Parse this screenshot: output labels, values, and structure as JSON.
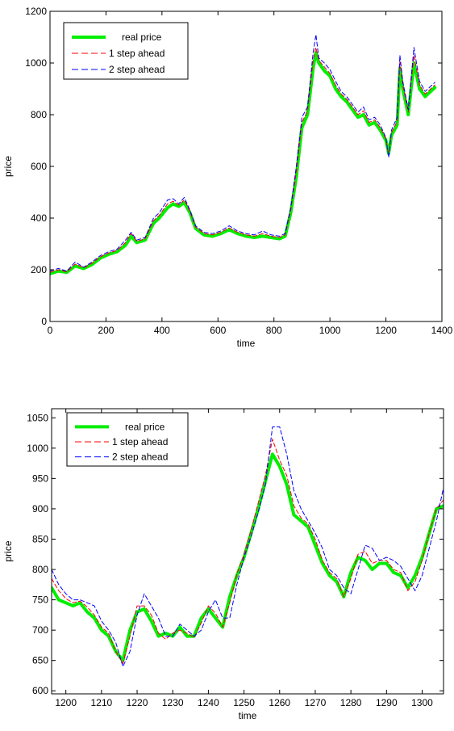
{
  "chart_data": [
    {
      "type": "line",
      "title": "",
      "xlabel": "time",
      "ylabel": "price",
      "xlim": [
        0,
        1400
      ],
      "ylim": [
        0,
        1200
      ],
      "xticks": [
        0,
        200,
        400,
        600,
        800,
        1000,
        1200,
        1400
      ],
      "yticks": [
        0,
        200,
        400,
        600,
        800,
        1000,
        1200
      ],
      "grid": false,
      "legend_position": "top-left",
      "series": [
        {
          "name": "real price",
          "color": "#00ee00",
          "style": "solid-thick",
          "x": [
            0,
            30,
            60,
            90,
            120,
            150,
            180,
            210,
            240,
            270,
            290,
            310,
            340,
            370,
            390,
            420,
            440,
            460,
            480,
            500,
            520,
            550,
            580,
            610,
            640,
            670,
            700,
            730,
            760,
            790,
            820,
            840,
            860,
            880,
            900,
            920,
            940,
            950,
            960,
            980,
            1000,
            1020,
            1040,
            1060,
            1080,
            1100,
            1120,
            1140,
            1160,
            1180,
            1200,
            1210,
            1220,
            1240,
            1250,
            1260,
            1280,
            1300,
            1320,
            1340,
            1360,
            1375
          ],
          "y": [
            185,
            195,
            190,
            215,
            205,
            220,
            245,
            260,
            270,
            295,
            330,
            305,
            315,
            380,
            400,
            440,
            455,
            445,
            460,
            420,
            360,
            335,
            330,
            340,
            355,
            340,
            330,
            325,
            330,
            325,
            320,
            330,
            420,
            560,
            750,
            800,
            980,
            1040,
            1000,
            970,
            950,
            900,
            870,
            850,
            820,
            790,
            800,
            760,
            770,
            740,
            700,
            650,
            720,
            760,
            980,
            900,
            800,
            1000,
            900,
            870,
            890,
            905
          ]
        },
        {
          "name": "1 step ahead",
          "color": "#ff0000",
          "style": "dashed",
          "x": [
            0,
            30,
            60,
            90,
            120,
            150,
            180,
            210,
            240,
            270,
            290,
            310,
            340,
            370,
            390,
            420,
            440,
            460,
            480,
            500,
            520,
            550,
            580,
            610,
            640,
            670,
            700,
            730,
            760,
            790,
            820,
            840,
            860,
            880,
            900,
            920,
            940,
            950,
            960,
            980,
            1000,
            1020,
            1040,
            1060,
            1080,
            1100,
            1120,
            1140,
            1160,
            1180,
            1200,
            1210,
            1220,
            1240,
            1250,
            1260,
            1280,
            1300,
            1320,
            1340,
            1360,
            1375
          ],
          "y": [
            190,
            200,
            192,
            222,
            208,
            225,
            250,
            265,
            275,
            305,
            340,
            310,
            320,
            390,
            410,
            455,
            465,
            450,
            470,
            425,
            365,
            340,
            335,
            345,
            362,
            345,
            335,
            330,
            340,
            330,
            325,
            335,
            430,
            580,
            770,
            815,
            1010,
            1060,
            1010,
            985,
            960,
            915,
            880,
            860,
            830,
            800,
            815,
            770,
            780,
            750,
            705,
            640,
            730,
            775,
            1005,
            915,
            810,
            1030,
            915,
            880,
            900,
            915
          ]
        },
        {
          "name": "2 step ahead",
          "color": "#0000ff",
          "style": "dashed",
          "x": [
            0,
            30,
            60,
            90,
            120,
            150,
            180,
            210,
            240,
            270,
            290,
            310,
            340,
            370,
            390,
            420,
            440,
            460,
            480,
            500,
            520,
            550,
            580,
            610,
            640,
            670,
            700,
            730,
            760,
            790,
            820,
            840,
            860,
            880,
            900,
            920,
            940,
            950,
            960,
            980,
            1000,
            1020,
            1040,
            1060,
            1080,
            1100,
            1120,
            1140,
            1160,
            1180,
            1200,
            1210,
            1220,
            1240,
            1250,
            1260,
            1280,
            1300,
            1320,
            1340,
            1360,
            1375
          ],
          "y": [
            195,
            205,
            195,
            230,
            210,
            230,
            255,
            270,
            280,
            315,
            345,
            315,
            325,
            400,
            420,
            470,
            475,
            455,
            480,
            430,
            370,
            345,
            340,
            350,
            370,
            350,
            340,
            335,
            350,
            335,
            330,
            340,
            440,
            600,
            790,
            830,
            1040,
            1110,
            1020,
            1000,
            975,
            930,
            890,
            870,
            840,
            810,
            830,
            780,
            790,
            760,
            710,
            635,
            740,
            790,
            1030,
            930,
            820,
            1060,
            930,
            890,
            910,
            925
          ]
        }
      ]
    },
    {
      "type": "line",
      "title": "",
      "xlabel": "time",
      "ylabel": "price",
      "xlim": [
        1196,
        1306
      ],
      "ylim": [
        595,
        1065
      ],
      "xticks": [
        1200,
        1210,
        1220,
        1230,
        1240,
        1250,
        1260,
        1270,
        1280,
        1290,
        1300
      ],
      "yticks": [
        600,
        650,
        700,
        750,
        800,
        850,
        900,
        950,
        1000,
        1050
      ],
      "grid": false,
      "legend_position": "top-left",
      "series": [
        {
          "name": "real price",
          "color": "#00ee00",
          "style": "solid-thick",
          "x": [
            1196,
            1198,
            1200,
            1202,
            1204,
            1206,
            1208,
            1210,
            1212,
            1214,
            1216,
            1218,
            1220,
            1222,
            1224,
            1226,
            1228,
            1230,
            1232,
            1234,
            1236,
            1238,
            1240,
            1242,
            1244,
            1246,
            1248,
            1250,
            1252,
            1254,
            1256,
            1258,
            1260,
            1262,
            1264,
            1266,
            1268,
            1270,
            1272,
            1274,
            1276,
            1278,
            1280,
            1282,
            1284,
            1286,
            1288,
            1290,
            1292,
            1294,
            1296,
            1298,
            1300,
            1302,
            1304,
            1306
          ],
          "y": [
            770,
            750,
            745,
            740,
            745,
            730,
            720,
            700,
            690,
            665,
            650,
            700,
            730,
            735,
            715,
            690,
            695,
            690,
            705,
            690,
            690,
            720,
            735,
            720,
            705,
            755,
            790,
            820,
            860,
            900,
            945,
            990,
            970,
            940,
            890,
            880,
            870,
            840,
            810,
            790,
            780,
            755,
            795,
            820,
            815,
            800,
            810,
            810,
            795,
            790,
            770,
            790,
            820,
            860,
            900,
            905
          ]
        },
        {
          "name": "1 step ahead",
          "color": "#ff0000",
          "style": "dashed",
          "x": [
            1196,
            1198,
            1200,
            1202,
            1204,
            1206,
            1208,
            1210,
            1212,
            1214,
            1216,
            1218,
            1220,
            1222,
            1224,
            1226,
            1228,
            1230,
            1232,
            1234,
            1236,
            1238,
            1240,
            1242,
            1244,
            1246,
            1248,
            1250,
            1252,
            1254,
            1256,
            1258,
            1260,
            1262,
            1264,
            1266,
            1268,
            1270,
            1272,
            1274,
            1276,
            1278,
            1280,
            1282,
            1284,
            1286,
            1288,
            1290,
            1292,
            1294,
            1296,
            1298,
            1300,
            1302,
            1304,
            1306
          ],
          "y": [
            785,
            765,
            752,
            745,
            748,
            738,
            725,
            705,
            695,
            665,
            645,
            690,
            740,
            740,
            725,
            695,
            685,
            695,
            700,
            695,
            688,
            712,
            740,
            728,
            705,
            745,
            792,
            825,
            865,
            910,
            955,
            1015,
            980,
            955,
            905,
            885,
            875,
            850,
            815,
            795,
            785,
            755,
            785,
            825,
            830,
            810,
            815,
            815,
            800,
            795,
            765,
            780,
            815,
            860,
            900,
            915
          ]
        },
        {
          "name": "2 step ahead",
          "color": "#0000ff",
          "style": "dashed",
          "x": [
            1196,
            1198,
            1200,
            1202,
            1204,
            1206,
            1208,
            1210,
            1212,
            1214,
            1216,
            1218,
            1220,
            1222,
            1224,
            1226,
            1228,
            1230,
            1232,
            1234,
            1236,
            1238,
            1240,
            1242,
            1244,
            1246,
            1248,
            1250,
            1252,
            1254,
            1256,
            1258,
            1260,
            1262,
            1264,
            1266,
            1268,
            1270,
            1272,
            1274,
            1276,
            1278,
            1280,
            1282,
            1284,
            1286,
            1288,
            1290,
            1292,
            1294,
            1296,
            1298,
            1300,
            1302,
            1304,
            1306
          ],
          "y": [
            800,
            775,
            760,
            750,
            750,
            745,
            740,
            715,
            700,
            680,
            640,
            665,
            725,
            760,
            740,
            720,
            690,
            690,
            710,
            700,
            690,
            700,
            730,
            750,
            720,
            720,
            775,
            820,
            855,
            895,
            940,
            1035,
            1035,
            990,
            930,
            900,
            880,
            860,
            835,
            800,
            790,
            770,
            760,
            800,
            840,
            835,
            815,
            820,
            815,
            805,
            785,
            765,
            790,
            835,
            880,
            935
          ]
        }
      ]
    }
  ]
}
